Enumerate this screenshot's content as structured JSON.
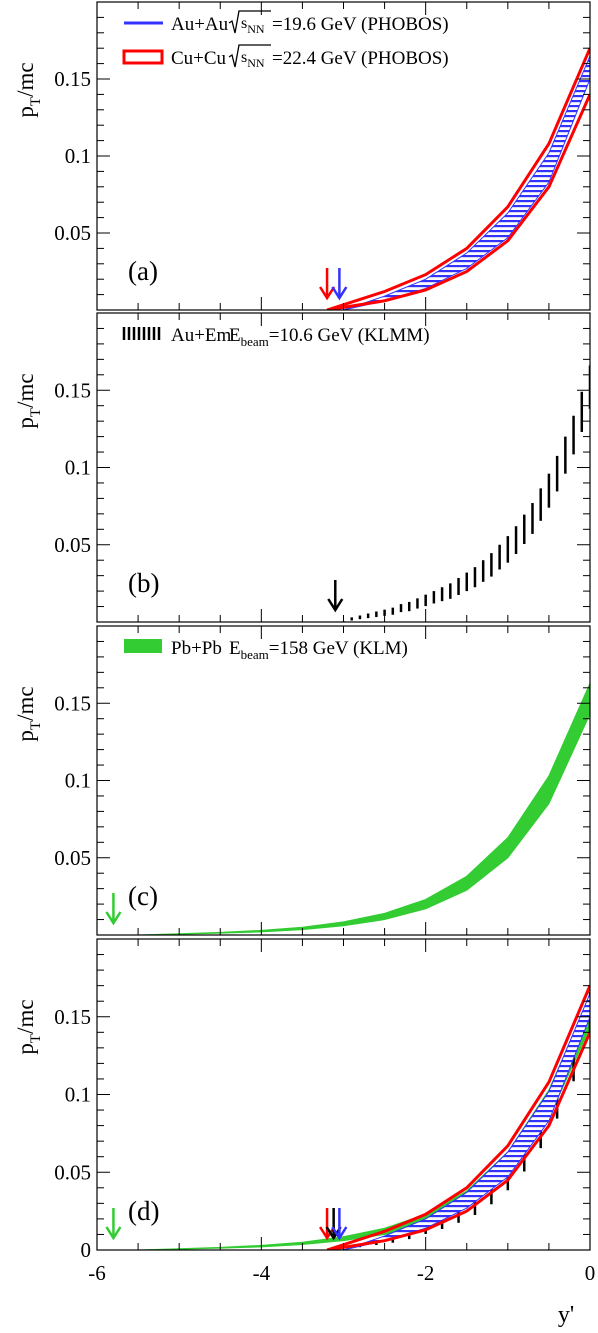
{
  "figure": {
    "x_axis_label": "y'",
    "x_ticks": [
      "-6",
      "-4",
      "-2",
      "0"
    ]
  },
  "chart_data": [
    {
      "type": "area",
      "panel_label": "(a)",
      "ylabel_main": "p",
      "ylabel_sub": "T",
      "ylabel_rest": "/mc",
      "y_ticks": [
        "0.05",
        "0.1",
        "0.15"
      ],
      "xlim": [
        -6,
        0
      ],
      "ylim": [
        0,
        0.2
      ],
      "legend": [
        {
          "label": "Au+Au",
          "sqrt": "s",
          "sqrt_sub": "NN",
          "energy": "=19.6 GeV (PHOBOS)",
          "style": "line",
          "color": "#3333ff"
        },
        {
          "label": "Cu+Cu",
          "sqrt": "s",
          "sqrt_sub": "NN",
          "energy": "=22.4 GeV (PHOBOS)",
          "style": "box",
          "color": "#ff0000"
        }
      ],
      "series": [
        {
          "name": "Au+Au",
          "style": "hatched-band",
          "color": "#3333ff",
          "x": [
            -3.0,
            -2.5,
            -2.0,
            -1.5,
            -1.0,
            -0.5,
            0.0
          ],
          "lower": [
            0.0,
            0.006,
            0.014,
            0.027,
            0.047,
            0.083,
            0.15
          ],
          "upper": [
            0.0,
            0.009,
            0.02,
            0.037,
            0.063,
            0.102,
            0.165
          ]
        },
        {
          "name": "Cu+Cu",
          "style": "outline-band",
          "color": "#ff0000",
          "x": [
            -3.2,
            -2.5,
            -2.0,
            -1.5,
            -1.0,
            -0.5,
            0.0
          ],
          "lower": [
            0.0,
            0.006,
            0.013,
            0.025,
            0.045,
            0.08,
            0.14
          ],
          "upper": [
            0.0,
            0.012,
            0.023,
            0.04,
            0.067,
            0.108,
            0.17
          ]
        }
      ],
      "arrows": [
        {
          "x": -3.2,
          "color": "#ff0000"
        },
        {
          "x": -3.05,
          "color": "#3333ff"
        }
      ]
    },
    {
      "type": "scatter",
      "panel_label": "(b)",
      "ylabel_main": "p",
      "ylabel_sub": "T",
      "ylabel_rest": "/mc",
      "y_ticks": [
        "0.05",
        "0.1",
        "0.15"
      ],
      "xlim": [
        -6,
        0
      ],
      "ylim": [
        0,
        0.2
      ],
      "legend": [
        {
          "label": "Au+Em",
          "beam": "E",
          "beam_sub": "beam",
          "energy": "=10.6 GeV (KLMM)",
          "style": "dashes",
          "color": "#000000"
        }
      ],
      "series": [
        {
          "name": "Au+Em",
          "style": "error-bars",
          "color": "#000000",
          "x": [
            -3.0,
            -2.9,
            -2.8,
            -2.7,
            -2.6,
            -2.5,
            -2.4,
            -2.3,
            -2.2,
            -2.1,
            -2.0,
            -1.9,
            -1.8,
            -1.7,
            -1.6,
            -1.5,
            -1.4,
            -1.3,
            -1.2,
            -1.1,
            -1.0,
            -0.9,
            -0.8,
            -0.7,
            -0.6,
            -0.5,
            -0.4,
            -0.3,
            -0.2,
            -0.1,
            0.0
          ],
          "y": [
            0.0,
            0.002,
            0.003,
            0.004,
            0.005,
            0.006,
            0.007,
            0.009,
            0.01,
            0.012,
            0.014,
            0.016,
            0.018,
            0.02,
            0.023,
            0.026,
            0.029,
            0.033,
            0.037,
            0.042,
            0.047,
            0.053,
            0.06,
            0.067,
            0.076,
            0.085,
            0.096,
            0.108,
            0.121,
            0.136,
            0.152
          ],
          "err": [
            0.0005,
            0.001,
            0.0012,
            0.0015,
            0.0018,
            0.002,
            0.0023,
            0.0026,
            0.003,
            0.0033,
            0.0037,
            0.004,
            0.0045,
            0.005,
            0.0055,
            0.006,
            0.0065,
            0.007,
            0.0076,
            0.008,
            0.0086,
            0.009,
            0.0095,
            0.01,
            0.0105,
            0.011,
            0.0115,
            0.012,
            0.0125,
            0.013,
            0.014
          ]
        }
      ],
      "arrows": [
        {
          "x": -3.1,
          "color": "#000000"
        }
      ]
    },
    {
      "type": "area",
      "panel_label": "(c)",
      "ylabel_main": "p",
      "ylabel_sub": "T",
      "ylabel_rest": "/mc",
      "y_ticks": [
        "0.05",
        "0.1",
        "0.15"
      ],
      "xlim": [
        -6,
        0
      ],
      "ylim": [
        0,
        0.2
      ],
      "legend": [
        {
          "label": "Pb+Pb",
          "beam": "E",
          "beam_sub": "beam",
          "energy": "=158 GeV (KLM)",
          "style": "fill",
          "color": "#33cc33"
        }
      ],
      "series": [
        {
          "name": "Pb+Pb",
          "style": "filled-band",
          "color": "#33cc33",
          "x": [
            -5.5,
            -5.0,
            -4.5,
            -4.0,
            -3.5,
            -3.0,
            -2.5,
            -2.0,
            -1.5,
            -1.0,
            -0.5,
            0.0
          ],
          "lower": [
            0.0,
            0.0006,
            0.0012,
            0.002,
            0.0035,
            0.006,
            0.01,
            0.017,
            0.029,
            0.05,
            0.085,
            0.143
          ],
          "upper": [
            0.0,
            0.0008,
            0.0017,
            0.003,
            0.005,
            0.0085,
            0.014,
            0.023,
            0.038,
            0.063,
            0.103,
            0.163
          ]
        }
      ],
      "arrows": [
        {
          "x": -5.8,
          "color": "#33cc33"
        }
      ]
    },
    {
      "type": "area",
      "panel_label": "(d)",
      "ylabel_main": "p",
      "ylabel_sub": "T",
      "ylabel_rest": "/mc",
      "y_ticks": [
        "0",
        "0.05",
        "0.1",
        "0.15"
      ],
      "xlim": [
        -6,
        0
      ],
      "ylim": [
        0,
        0.2
      ],
      "series": [
        {
          "name": "Pb+Pb",
          "style": "filled-band",
          "color": "#33cc33",
          "x": [
            -5.5,
            -5.0,
            -4.5,
            -4.0,
            -3.5,
            -3.0,
            -2.5,
            -2.0,
            -1.5,
            -1.0,
            -0.5,
            0.0
          ],
          "lower": [
            0.0,
            0.0006,
            0.0012,
            0.002,
            0.0035,
            0.006,
            0.01,
            0.017,
            0.029,
            0.05,
            0.085,
            0.143
          ],
          "upper": [
            0.0,
            0.0008,
            0.0017,
            0.003,
            0.005,
            0.0085,
            0.014,
            0.023,
            0.038,
            0.063,
            0.103,
            0.163
          ]
        },
        {
          "name": "Au+Em",
          "style": "error-bars",
          "color": "#000000",
          "x": [
            -3.0,
            -2.8,
            -2.6,
            -2.4,
            -2.2,
            -2.0,
            -1.8,
            -1.6,
            -1.4,
            -1.2,
            -1.0,
            -0.8,
            -0.6,
            -0.4,
            -0.2,
            0.0
          ],
          "y": [
            0.0,
            0.003,
            0.005,
            0.007,
            0.01,
            0.014,
            0.018,
            0.023,
            0.029,
            0.037,
            0.047,
            0.06,
            0.076,
            0.096,
            0.121,
            0.152
          ],
          "err": [
            0.0005,
            0.0012,
            0.0018,
            0.0023,
            0.003,
            0.0037,
            0.0045,
            0.0055,
            0.0065,
            0.0076,
            0.0086,
            0.0095,
            0.0105,
            0.0115,
            0.0125,
            0.014
          ]
        },
        {
          "name": "Au+Au",
          "style": "hatched-band",
          "color": "#3333ff",
          "x": [
            -3.0,
            -2.5,
            -2.0,
            -1.5,
            -1.0,
            -0.5,
            0.0
          ],
          "lower": [
            0.0,
            0.006,
            0.014,
            0.027,
            0.047,
            0.083,
            0.15
          ],
          "upper": [
            0.0,
            0.009,
            0.02,
            0.037,
            0.063,
            0.102,
            0.165
          ]
        },
        {
          "name": "Cu+Cu",
          "style": "outline-band",
          "color": "#ff0000",
          "x": [
            -3.2,
            -2.5,
            -2.0,
            -1.5,
            -1.0,
            -0.5,
            0.0
          ],
          "lower": [
            0.0,
            0.006,
            0.013,
            0.025,
            0.045,
            0.08,
            0.14
          ],
          "upper": [
            0.0,
            0.012,
            0.023,
            0.04,
            0.067,
            0.108,
            0.17
          ]
        }
      ],
      "arrows": [
        {
          "x": -5.8,
          "color": "#33cc33"
        },
        {
          "x": -3.2,
          "color": "#ff0000"
        },
        {
          "x": -3.12,
          "color": "#000000"
        },
        {
          "x": -3.05,
          "color": "#3333ff"
        }
      ]
    }
  ]
}
